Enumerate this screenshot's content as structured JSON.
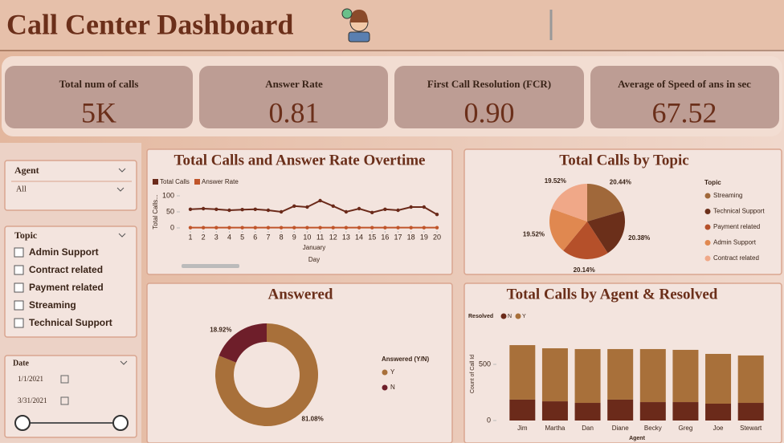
{
  "header": {
    "title": "Call Center Dashboard"
  },
  "kpis": [
    {
      "label": "Total num of calls",
      "value": "5K"
    },
    {
      "label": "Answer Rate",
      "value": "0.81"
    },
    {
      "label": "First Call Resolution (FCR)",
      "value": "0.90"
    },
    {
      "label": "Average of Speed of ans in sec",
      "value": "67.52"
    }
  ],
  "filters": {
    "agent": {
      "title": "Agent",
      "selected": "All"
    },
    "topic": {
      "title": "Topic",
      "items": [
        "Admin Support",
        "Contract related",
        "Payment related",
        "Streaming",
        "Technical Support"
      ]
    },
    "date": {
      "title": "Date",
      "start": "1/1/2021",
      "end": "3/31/2021"
    }
  },
  "chart_data": [
    {
      "type": "line",
      "title": "Total Calls and Answer Rate Overtime",
      "x": [
        1,
        2,
        3,
        4,
        5,
        6,
        7,
        8,
        9,
        10,
        11,
        12,
        13,
        14,
        15,
        16,
        17,
        18,
        19,
        20
      ],
      "xticks": [
        1,
        2,
        3,
        4,
        5,
        6,
        7,
        8,
        9,
        10,
        11,
        12,
        13,
        14,
        15,
        16,
        17,
        18,
        19,
        20
      ],
      "xlabel": "Day",
      "xsublabel": "January",
      "ylabel": "Total Calls...",
      "ylim": [
        0,
        100
      ],
      "yticks": [
        0,
        50,
        100
      ],
      "series": [
        {
          "name": "Total Calls",
          "color": "#6b2a1a",
          "values": [
            58,
            60,
            58,
            55,
            57,
            58,
            55,
            50,
            68,
            65,
            85,
            68,
            50,
            60,
            48,
            58,
            55,
            65,
            65,
            42
          ]
        },
        {
          "name": "Answer Rate",
          "color": "#c0552a",
          "values": [
            0.81,
            0.81,
            0.81,
            0.81,
            0.81,
            0.81,
            0.81,
            0.81,
            0.81,
            0.81,
            0.81,
            0.81,
            0.81,
            0.81,
            0.81,
            0.81,
            0.81,
            0.81,
            0.81,
            0.81
          ]
        }
      ]
    },
    {
      "type": "pie",
      "title": "Total Calls by Topic",
      "legend_title": "Topic",
      "categories": [
        "Streaming",
        "Technical Support",
        "Payment related",
        "Admin Support",
        "Contract related"
      ],
      "values": [
        20.44,
        20.38,
        20.14,
        19.52,
        19.52
      ],
      "value_labels": [
        "20.44%",
        "20.38%",
        "20.14%",
        "19.52%",
        "19.52%"
      ],
      "colors": [
        "#a0683a",
        "#6b2f1a",
        "#b5502a",
        "#e08850",
        "#f0a888"
      ]
    },
    {
      "type": "donut",
      "title": "Answered",
      "legend_title": "Answered (Y/N)",
      "categories": [
        "Y",
        "N"
      ],
      "values": [
        81.08,
        18.92
      ],
      "value_labels": [
        "81.08%",
        "18.92%"
      ],
      "colors": [
        "#a8703a",
        "#6e1e2a"
      ]
    },
    {
      "type": "stacked_bar",
      "title": "Total Calls by Agent & Resolved",
      "legend_title": "Resolved",
      "categories": [
        "Jim",
        "Martha",
        "Dan",
        "Diane",
        "Becky",
        "Greg",
        "Joe",
        "Stewart"
      ],
      "xlabel": "Agent",
      "ylabel": "Count of Call Id",
      "ylim": [
        0,
        700
      ],
      "yticks": [
        0,
        500
      ],
      "series": [
        {
          "name": "N",
          "color": "#6b2a1a",
          "values": [
            186,
            171,
            157,
            186,
            164,
            164,
            150,
            157
          ]
        },
        {
          "name": "Y",
          "color": "#a8703a",
          "values": [
            485,
            472,
            479,
            450,
            472,
            465,
            443,
            422
          ]
        }
      ]
    }
  ]
}
